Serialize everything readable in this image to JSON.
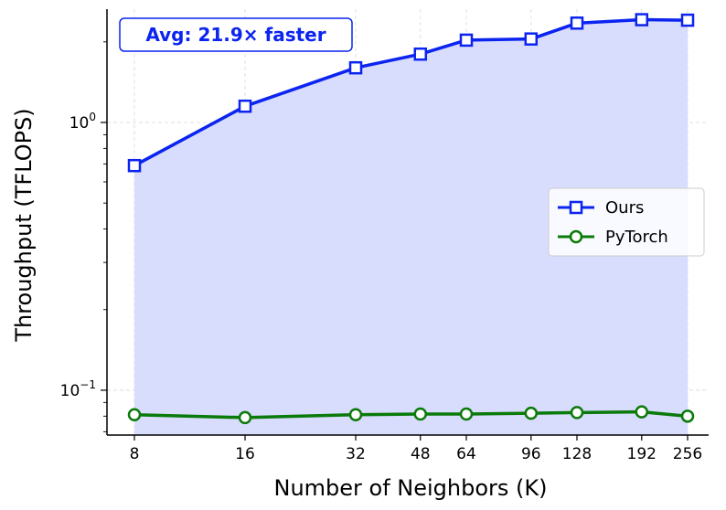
{
  "chart_data": {
    "type": "line",
    "xlabel": "Number of Neighbors (K)",
    "ylabel": "Throughput (TFLOPS)",
    "x_scale": "log2",
    "y_scale": "log10",
    "x": [
      8,
      16,
      32,
      48,
      64,
      96,
      128,
      192,
      256
    ],
    "xticks": [
      "8",
      "16",
      "32",
      "48",
      "64",
      "96",
      "128",
      "192",
      "256"
    ],
    "ylim": [
      0.068,
      2.65
    ],
    "yticks": [
      {
        "value": 0.1,
        "base": "10",
        "exp": "−1"
      },
      {
        "value": 1.0,
        "base": "10",
        "exp": "0"
      }
    ],
    "grid": true,
    "legend_position": "center-right",
    "annotation": "Avg: 21.9× faster",
    "series": [
      {
        "name": "Ours",
        "color": "#0b24f0",
        "marker": "square",
        "fill_color": "#d8dcfd",
        "values": [
          0.69,
          1.15,
          1.6,
          1.8,
          2.03,
          2.05,
          2.35,
          2.42,
          2.41
        ]
      },
      {
        "name": "PyTorch",
        "color": "#0a7a0a",
        "marker": "circle",
        "values": [
          0.081,
          0.079,
          0.081,
          0.0815,
          0.0815,
          0.082,
          0.0825,
          0.083,
          0.08
        ]
      }
    ]
  }
}
